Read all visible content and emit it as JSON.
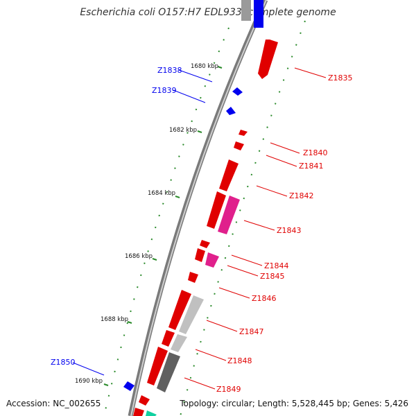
{
  "title": "Escherichia coli O157:H7 EDL933, complete genome",
  "footer": {
    "accession": "Accession: NC_002655",
    "summary": "Topology: circular; Length: 5,528,445 bp; Genes: 5,426"
  },
  "colors": {
    "forward_gene": "#e00000",
    "reverse_gene": "#0000ee",
    "pink_gene": "#e0208c",
    "light_gray_gene": "#c0c0c0",
    "dark_gray_gene": "#606060",
    "teal_gene": "#10d0a0",
    "backbone": "#8a8a8a",
    "tick": "#2a8a2a"
  },
  "tick_labels": [
    {
      "text": "1680 kbp",
      "kbp": 1680
    },
    {
      "text": "1682 kbp",
      "kbp": 1682
    },
    {
      "text": "1684 kbp",
      "kbp": 1684
    },
    {
      "text": "1686 kbp",
      "kbp": 1686
    },
    {
      "text": "1688 kbp",
      "kbp": 1688
    },
    {
      "text": "1690 kbp",
      "kbp": 1690
    }
  ],
  "gene_labels": [
    {
      "name": "Z1835",
      "strand": "forward"
    },
    {
      "name": "Z1838",
      "strand": "reverse"
    },
    {
      "name": "Z1839",
      "strand": "reverse"
    },
    {
      "name": "Z1840",
      "strand": "forward"
    },
    {
      "name": "Z1841",
      "strand": "forward"
    },
    {
      "name": "Z1842",
      "strand": "forward"
    },
    {
      "name": "Z1843",
      "strand": "forward"
    },
    {
      "name": "Z1844",
      "strand": "forward"
    },
    {
      "name": "Z1845",
      "strand": "forward"
    },
    {
      "name": "Z1846",
      "strand": "forward"
    },
    {
      "name": "Z1847",
      "strand": "forward"
    },
    {
      "name": "Z1848",
      "strand": "forward"
    },
    {
      "name": "Z1849",
      "strand": "forward"
    },
    {
      "name": "Z1850",
      "strand": "reverse"
    }
  ]
}
